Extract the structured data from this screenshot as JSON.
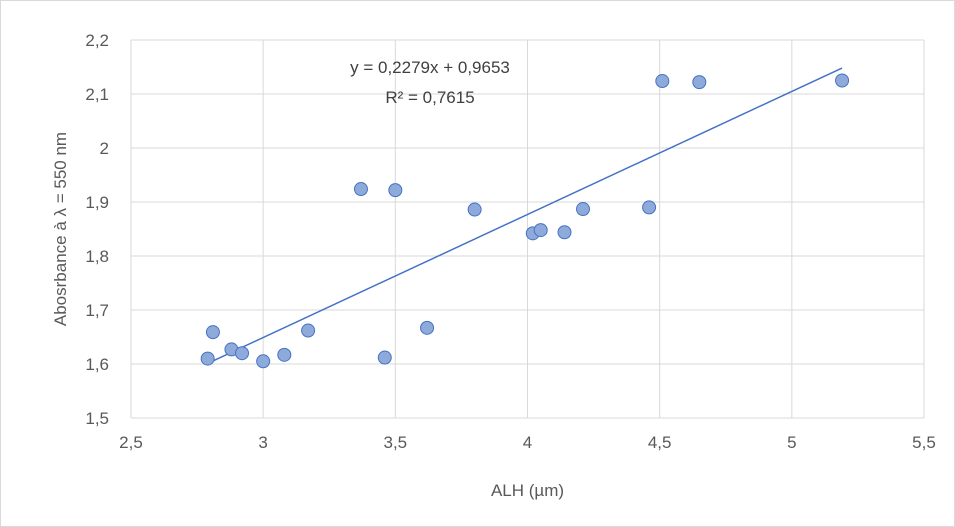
{
  "chart_data": {
    "type": "scatter",
    "title": "",
    "xlabel": "ALH (µm)",
    "ylabel": "Abosrbance à λ = 550 nm",
    "xlim": [
      2.5,
      5.5
    ],
    "ylim": [
      1.5,
      2.2
    ],
    "x_ticks": [
      2.5,
      3,
      3.5,
      4,
      4.5,
      5,
      5.5
    ],
    "y_ticks": [
      1.5,
      1.6,
      1.7,
      1.8,
      1.9,
      2,
      2.1,
      2.2
    ],
    "x_tick_labels": [
      "2,5",
      "3",
      "3,5",
      "4",
      "4,5",
      "5",
      "5,5"
    ],
    "y_tick_labels": [
      "1,5",
      "1,6",
      "1,7",
      "1,8",
      "1,9",
      "2",
      "2,1",
      "2,2"
    ],
    "grid": true,
    "legend": "none",
    "points": [
      {
        "x": 2.79,
        "y": 1.61
      },
      {
        "x": 2.81,
        "y": 1.659
      },
      {
        "x": 2.88,
        "y": 1.627
      },
      {
        "x": 2.92,
        "y": 1.62
      },
      {
        "x": 3.0,
        "y": 1.605
      },
      {
        "x": 3.08,
        "y": 1.617
      },
      {
        "x": 3.17,
        "y": 1.662
      },
      {
        "x": 3.37,
        "y": 1.924
      },
      {
        "x": 3.46,
        "y": 1.612
      },
      {
        "x": 3.5,
        "y": 1.922
      },
      {
        "x": 3.62,
        "y": 1.667
      },
      {
        "x": 3.8,
        "y": 1.886
      },
      {
        "x": 4.02,
        "y": 1.842
      },
      {
        "x": 4.05,
        "y": 1.848
      },
      {
        "x": 4.14,
        "y": 1.844
      },
      {
        "x": 4.21,
        "y": 1.887
      },
      {
        "x": 4.46,
        "y": 1.89
      },
      {
        "x": 4.51,
        "y": 2.124
      },
      {
        "x": 4.65,
        "y": 2.122
      },
      {
        "x": 5.19,
        "y": 2.125
      }
    ],
    "trendline": {
      "slope": 0.2279,
      "intercept": 0.9653,
      "x_start": 2.79,
      "x_end": 5.19,
      "equation_text": "y = 0,2279x + 0,9653",
      "r2_text": "R² = 0,7615"
    },
    "colors": {
      "marker_fill": "#8eaadb",
      "marker_stroke": "#4472c4",
      "trendline": "#4472c4",
      "grid": "#d9d9d9",
      "text": "#595959"
    }
  }
}
